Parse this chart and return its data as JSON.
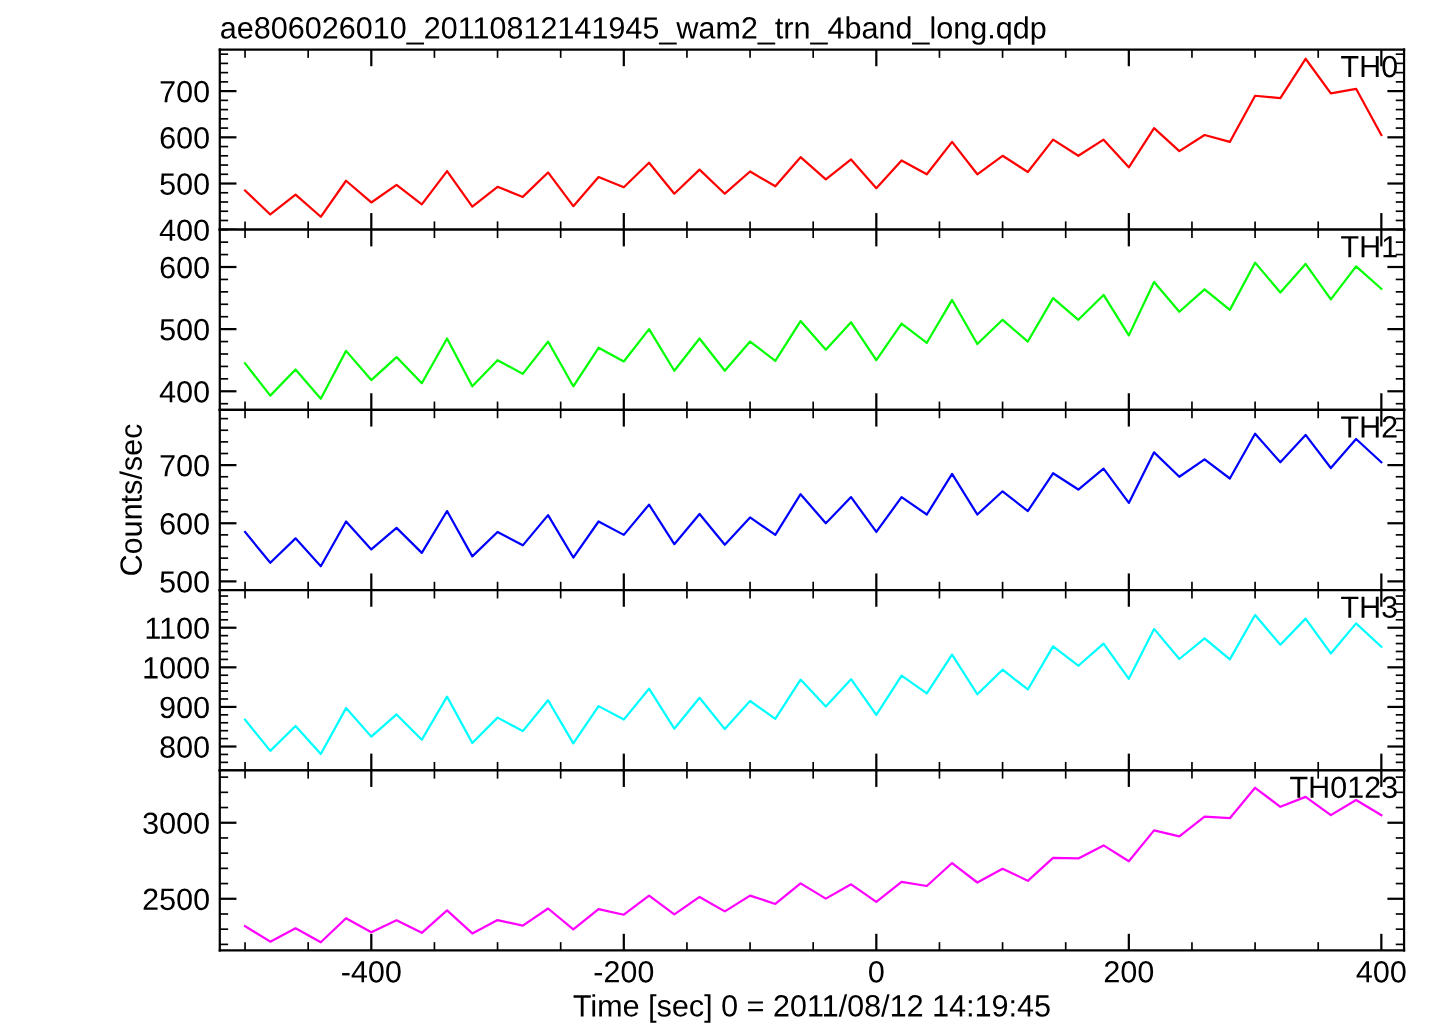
{
  "chart_data": [
    {
      "type": "line",
      "title": "ae806026010_20110812141945_wam2_trn_4band_long.qdp",
      "x": [
        -500,
        -480,
        -460,
        -440,
        -420,
        -400,
        -380,
        -360,
        -340,
        -320,
        -300,
        -280,
        -260,
        -240,
        -220,
        -200,
        -180,
        -160,
        -140,
        -120,
        -100,
        -80,
        -60,
        -40,
        -20,
        0,
        20,
        40,
        60,
        80,
        100,
        120,
        140,
        160,
        180,
        200,
        220,
        240,
        260,
        280,
        300,
        320,
        340,
        360,
        380,
        400
      ],
      "xlim": [
        -520,
        418
      ],
      "ylim": [
        400,
        790
      ],
      "yticks": [
        400,
        500,
        600,
        700
      ],
      "tick_labels": "y",
      "grid": false,
      "legend": false,
      "series": [
        {
          "name": "TH0",
          "color": "#ff0000",
          "values": [
            485,
            433,
            476,
            428,
            506,
            459,
            497,
            455,
            527,
            450,
            493,
            471,
            524,
            451,
            514,
            492,
            545,
            478,
            530,
            478,
            526,
            494,
            557,
            509,
            552,
            490,
            550,
            520,
            590,
            520,
            560,
            525,
            595,
            560,
            595,
            535,
            620,
            570,
            605,
            590,
            690,
            685,
            770,
            695,
            705,
            605
          ]
        }
      ]
    },
    {
      "type": "line",
      "x": [
        -500,
        -480,
        -460,
        -440,
        -420,
        -400,
        -380,
        -360,
        -340,
        -320,
        -300,
        -280,
        -260,
        -240,
        -220,
        -200,
        -180,
        -160,
        -140,
        -120,
        -100,
        -80,
        -60,
        -40,
        -20,
        0,
        20,
        40,
        60,
        80,
        100,
        120,
        140,
        160,
        180,
        200,
        220,
        240,
        260,
        280,
        300,
        320,
        340,
        360,
        380,
        400
      ],
      "xlim": [
        -520,
        418
      ],
      "ylim": [
        370,
        660
      ],
      "yticks": [
        400,
        500,
        600
      ],
      "tick_labels": "y",
      "grid": false,
      "legend": false,
      "series": [
        {
          "name": "TH1",
          "color": "#00ff00",
          "values": [
            445,
            393,
            435,
            388,
            465,
            418,
            455,
            413,
            485,
            408,
            450,
            428,
            480,
            408,
            470,
            448,
            500,
            433,
            485,
            433,
            480,
            449,
            513,
            467,
            511,
            450,
            509,
            478,
            547,
            476,
            515,
            480,
            550,
            515,
            555,
            490,
            576,
            528,
            564,
            531,
            607,
            559,
            605,
            548,
            601,
            565
          ]
        }
      ]
    },
    {
      "type": "line",
      "ylabel": "Counts/sec",
      "x": [
        -500,
        -480,
        -460,
        -440,
        -420,
        -400,
        -380,
        -360,
        -340,
        -320,
        -300,
        -280,
        -260,
        -240,
        -220,
        -200,
        -180,
        -160,
        -140,
        -120,
        -100,
        -80,
        -60,
        -40,
        -20,
        0,
        20,
        40,
        60,
        80,
        100,
        120,
        140,
        160,
        180,
        200,
        220,
        240,
        260,
        280,
        300,
        320,
        340,
        360,
        380,
        400
      ],
      "xlim": [
        -520,
        418
      ],
      "ylim": [
        485,
        795
      ],
      "yticks": [
        500,
        600,
        700
      ],
      "tick_labels": "y",
      "grid": false,
      "legend": false,
      "series": [
        {
          "name": "TH2",
          "color": "#0000ff",
          "values": [
            585,
            532,
            574,
            526,
            603,
            555,
            592,
            549,
            621,
            543,
            585,
            562,
            614,
            541,
            603,
            580,
            632,
            564,
            616,
            563,
            610,
            580,
            650,
            600,
            645,
            585,
            645,
            615,
            685,
            615,
            655,
            621,
            686,
            658,
            694,
            635,
            722,
            680,
            710,
            677,
            754,
            705,
            752,
            695,
            745,
            705
          ]
        }
      ]
    },
    {
      "type": "line",
      "x": [
        -500,
        -480,
        -460,
        -440,
        -420,
        -400,
        -380,
        -360,
        -340,
        -320,
        -300,
        -280,
        -260,
        -240,
        -220,
        -200,
        -180,
        -160,
        -140,
        -120,
        -100,
        -80,
        -60,
        -40,
        -20,
        0,
        20,
        40,
        60,
        80,
        100,
        120,
        140,
        160,
        180,
        200,
        220,
        240,
        260,
        280,
        300,
        320,
        340,
        360,
        380,
        400
      ],
      "xlim": [
        -520,
        418
      ],
      "ylim": [
        740,
        1195
      ],
      "yticks": [
        800,
        900,
        1000,
        1100
      ],
      "tick_labels": "y",
      "grid": false,
      "legend": false,
      "series": [
        {
          "name": "TH3",
          "color": "#00ffff",
          "values": [
            868,
            789,
            852,
            781,
            897,
            825,
            881,
            817,
            926,
            809,
            873,
            839,
            917,
            808,
            902,
            868,
            946,
            845,
            923,
            844,
            915,
            870,
            969,
            901,
            970,
            880,
            979,
            934,
            1032,
            932,
            994,
            944,
            1053,
            1004,
            1060,
            971,
            1097,
            1021,
            1073,
            1020,
            1132,
            1057,
            1123,
            1035,
            1111,
            1052
          ]
        }
      ]
    },
    {
      "type": "line",
      "xlabel": "Time [sec] 0 = 2011/08/12 14:19:45",
      "x": [
        -500,
        -480,
        -460,
        -440,
        -420,
        -400,
        -380,
        -360,
        -340,
        -320,
        -300,
        -280,
        -260,
        -240,
        -220,
        -200,
        -180,
        -160,
        -140,
        -120,
        -100,
        -80,
        -60,
        -40,
        -20,
        0,
        20,
        40,
        60,
        80,
        100,
        120,
        140,
        160,
        180,
        200,
        220,
        240,
        260,
        280,
        300,
        320,
        340,
        360,
        380,
        400
      ],
      "xlim": [
        -520,
        418
      ],
      "xticks": [
        -400,
        -200,
        0,
        200,
        400
      ],
      "ylim": [
        2160,
        3345
      ],
      "yticks": [
        2500,
        3000
      ],
      "grid": false,
      "legend": false,
      "series": [
        {
          "name": "TH0123",
          "color": "#ff00ff",
          "values": [
            2320,
            2218,
            2306,
            2214,
            2372,
            2280,
            2358,
            2276,
            2424,
            2272,
            2360,
            2323,
            2436,
            2299,
            2432,
            2395,
            2521,
            2397,
            2512,
            2417,
            2521,
            2466,
            2601,
            2501,
            2595,
            2480,
            2611,
            2584,
            2735,
            2607,
            2698,
            2618,
            2769,
            2765,
            2851,
            2747,
            2950,
            2910,
            3040,
            3030,
            3230,
            3105,
            3170,
            3050,
            3150,
            3050
          ]
        }
      ]
    }
  ]
}
